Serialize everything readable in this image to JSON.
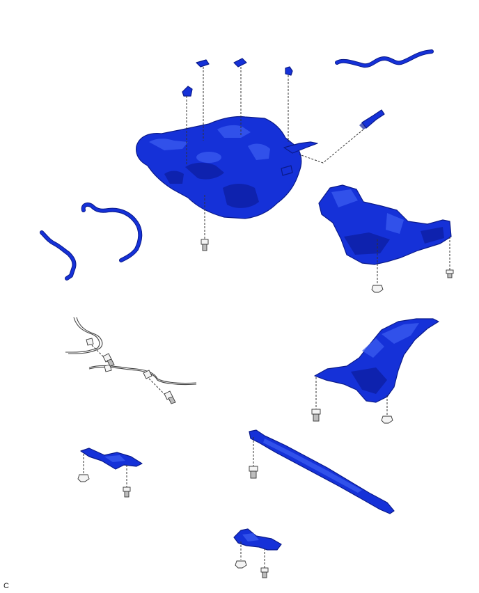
{
  "figure": {
    "code_label": "C"
  },
  "colors": {
    "part_fill": "#1531d8",
    "part_outline": "#0a1a8a",
    "fastener": "#f4f4f4",
    "leader_line": "#333333"
  }
}
